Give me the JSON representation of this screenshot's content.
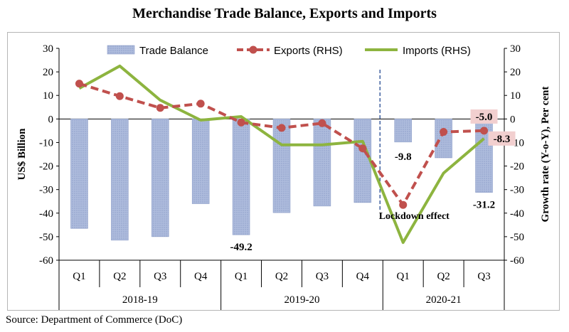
{
  "chart_data": {
    "type": "bar+line",
    "title": "Merchandise Trade Balance, Exports and Imports",
    "ylabel_left": "US$ Billion",
    "ylabel_right": "Growth rate (Y-o-Y), Per cent",
    "ylim": [
      -60,
      30
    ],
    "yticks": [
      30,
      20,
      10,
      0,
      -10,
      -20,
      -30,
      -40,
      -50,
      -60
    ],
    "categories": [
      "Q1",
      "Q2",
      "Q3",
      "Q4",
      "Q1",
      "Q2",
      "Q3",
      "Q4",
      "Q1",
      "Q2",
      "Q3"
    ],
    "groups": [
      {
        "label": "2018-19",
        "start": 0,
        "end": 3
      },
      {
        "label": "2019-20",
        "start": 4,
        "end": 7
      },
      {
        "label": "2020-21",
        "start": 8,
        "end": 10
      }
    ],
    "series": [
      {
        "name": "Trade Balance",
        "kind": "bar",
        "axis": "left",
        "color": "#a9b8da",
        "values": [
          -46.5,
          -51.5,
          -50.0,
          -36.0,
          -49.2,
          -39.8,
          -37.0,
          -35.5,
          -9.8,
          -16.5,
          -31.2
        ]
      },
      {
        "name": "Exports (RHS)",
        "kind": "line-dashed",
        "axis": "right",
        "color": "#c0504d",
        "values": [
          15.0,
          9.7,
          4.7,
          6.5,
          -1.5,
          -3.8,
          -1.8,
          -12.5,
          -36.5,
          -5.5,
          -5.0
        ]
      },
      {
        "name": "Imports (RHS)",
        "kind": "line",
        "axis": "right",
        "color": "#8db43f",
        "values": [
          13.0,
          22.5,
          8.0,
          -0.5,
          1.0,
          -11.0,
          -11.0,
          -9.5,
          -52.5,
          -23.0,
          -8.3
        ]
      }
    ],
    "data_labels": [
      {
        "text": "-49.2",
        "series": "Trade Balance",
        "index": 4
      },
      {
        "text": "-9.8",
        "series": "Trade Balance",
        "index": 8
      },
      {
        "text": "-31.2",
        "series": "Trade Balance",
        "index": 10
      },
      {
        "text": "-5.0",
        "series": "Exports (RHS)",
        "index": 10,
        "highlight": "#f2cfcf"
      },
      {
        "text": "-8.3",
        "series": "Imports (RHS)",
        "index": 10,
        "highlight": "#f2cfcf"
      }
    ],
    "annotation": {
      "text": "Lockdown effect",
      "after_index": 7
    },
    "legend_position": "top",
    "grid": false
  },
  "source": "Source: Department of Commerce (DoC)"
}
